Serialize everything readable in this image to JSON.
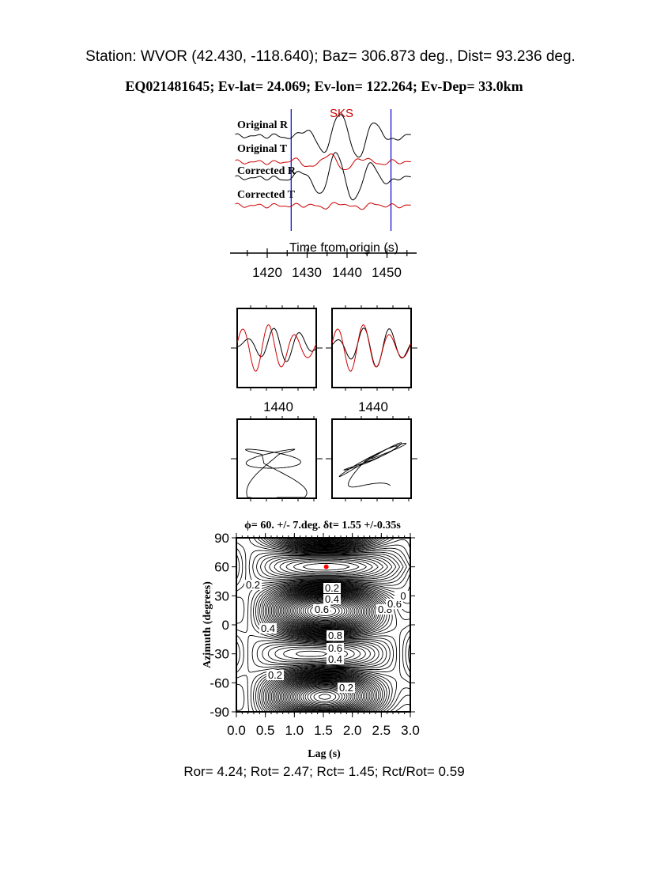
{
  "header": {
    "station_line": "Station: WVOR (42.430, -118.640); Baz=  306.873 deg., Dist=   93.236 deg.",
    "event_line": "EQ021481645; Ev-lat=  24.069; Ev-lon= 122.264; Ev-Dep= 33.0km"
  },
  "footer": {
    "ratios": "Ror= 4.24; Rot= 2.47; Rct= 1.45; Rct/Rot= 0.59"
  },
  "colors": {
    "radial": "#000000",
    "transverse": "#cc0000",
    "window": "#0000cc",
    "best_fit": "#ff0000"
  },
  "chart_data": [
    {
      "type": "line",
      "phase_label": "SKS",
      "trace_labels": [
        "Original R",
        "Original T",
        "Corrected R",
        "Corrected T"
      ],
      "xlabel": "Time from origin (s)",
      "xticks": [
        "1420",
        "1430",
        "1440",
        "1450"
      ],
      "xlim": [
        1411,
        1456
      ],
      "window": [
        1426,
        1451
      ]
    },
    {
      "type": "line",
      "panels": [
        "original",
        "corrected"
      ],
      "xtick_label": "1440"
    },
    {
      "type": "line",
      "panels": [
        "original-particle-motion",
        "corrected-particle-motion"
      ]
    },
    {
      "type": "heatmap",
      "title": "ϕ= 60. +/- 7.deg. δt= 1.55 +/-0.35s",
      "xlabel": "Lag (s)",
      "ylabel": "Azimuth (degrees)",
      "xlim": [
        0,
        3
      ],
      "ylim": [
        -90,
        90
      ],
      "xticks": [
        "0.0",
        "0.5",
        "1.0",
        "1.5",
        "2.0",
        "2.5",
        "3.0"
      ],
      "yticks": [
        "90",
        "60",
        "30",
        "0",
        "-30",
        "-60",
        "-90"
      ],
      "best_fit": {
        "lag": 1.55,
        "azimuth": 60
      },
      "contour_labels": [
        "0.2",
        "0.2",
        "0.4",
        "0.6",
        "0.8",
        "0.6",
        "0.8",
        "0.6",
        "0.4",
        "0.4",
        "0.2",
        "0.2",
        "0"
      ]
    }
  ]
}
